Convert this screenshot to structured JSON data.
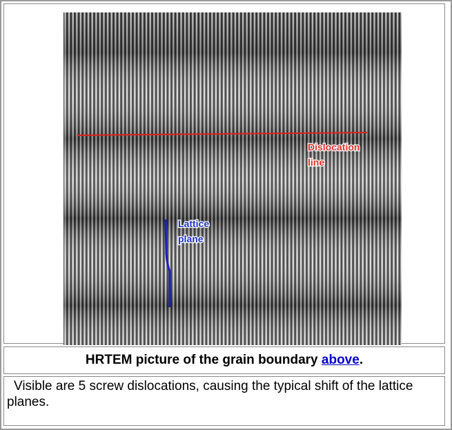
{
  "figure": {
    "labels": {
      "dislocation": [
        "Dislocation",
        "line"
      ],
      "lattice": [
        "Lattice",
        "plane"
      ]
    }
  },
  "caption": {
    "text": "HRTEM picture of the grain boundary ",
    "link": "above",
    "end": "."
  },
  "description": "Visible are 5 screw dislocations, causing the typical shift of the lattice planes."
}
